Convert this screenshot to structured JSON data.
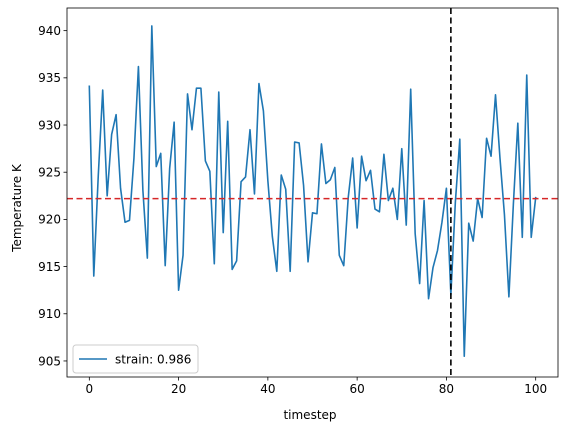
{
  "chart_data": {
    "type": "line",
    "xlabel": "timestep",
    "ylabel": "Temperature K",
    "xlim": [
      -5,
      105
    ],
    "ylim": [
      903.3,
      942.4
    ],
    "x_ticks": [
      0,
      20,
      40,
      60,
      80,
      100
    ],
    "y_ticks": [
      905,
      910,
      915,
      920,
      925,
      930,
      935,
      940
    ],
    "grid": false,
    "legend_position": "lower-left",
    "series": [
      {
        "name": "strain: 0.986",
        "color": "#1f77b4",
        "x": [
          0,
          1,
          2,
          3,
          4,
          5,
          6,
          7,
          8,
          9,
          10,
          11,
          12,
          13,
          14,
          15,
          16,
          17,
          18,
          19,
          20,
          21,
          22,
          23,
          24,
          25,
          26,
          27,
          28,
          29,
          30,
          31,
          32,
          33,
          34,
          35,
          36,
          37,
          38,
          39,
          40,
          41,
          42,
          43,
          44,
          45,
          46,
          47,
          48,
          49,
          50,
          51,
          52,
          53,
          54,
          55,
          56,
          57,
          58,
          59,
          60,
          61,
          62,
          63,
          64,
          65,
          66,
          67,
          68,
          69,
          70,
          71,
          72,
          73,
          74,
          75,
          76,
          77,
          78,
          79,
          80,
          81,
          82,
          83,
          84,
          85,
          86,
          87,
          88,
          89,
          90,
          91,
          92,
          93,
          94,
          95,
          96,
          97,
          98,
          99,
          100
        ],
        "y": [
          934.1,
          914.0,
          924.6,
          933.7,
          922.5,
          929.0,
          931.1,
          923.3,
          919.7,
          919.9,
          926.5,
          936.2,
          923.1,
          915.9,
          940.5,
          925.6,
          927.0,
          915.1,
          925.4,
          930.3,
          912.5,
          916.2,
          933.3,
          929.5,
          933.9,
          933.9,
          926.2,
          925.1,
          915.3,
          933.5,
          918.6,
          930.4,
          914.7,
          915.6,
          924.0,
          924.5,
          929.5,
          922.7,
          934.4,
          931.5,
          924.1,
          918.2,
          914.5,
          924.7,
          923.2,
          914.5,
          928.2,
          928.1,
          923.6,
          915.5,
          920.7,
          920.6,
          928.0,
          923.8,
          924.2,
          925.5,
          916.2,
          915.1,
          922.3,
          926.5,
          919.1,
          926.7,
          924.1,
          925.2,
          921.1,
          920.8,
          926.9,
          922.0,
          923.3,
          920.0,
          927.5,
          919.4,
          933.8,
          918.5,
          913.2,
          922.0,
          911.6,
          914.9,
          916.7,
          919.7,
          923.3,
          912.0,
          921.8,
          928.5,
          905.5,
          919.6,
          917.7,
          922.2,
          920.2,
          928.6,
          926.7,
          933.2,
          926.5,
          920.5,
          911.8,
          921.6,
          930.2,
          918.1,
          935.3,
          918.1,
          922.3
        ]
      }
    ],
    "reference_lines": [
      {
        "orientation": "horizontal",
        "value": 922.2,
        "color": "#d62728",
        "style": "dashed"
      },
      {
        "orientation": "vertical",
        "value": 81,
        "color": "#000000",
        "style": "dashed"
      }
    ]
  }
}
